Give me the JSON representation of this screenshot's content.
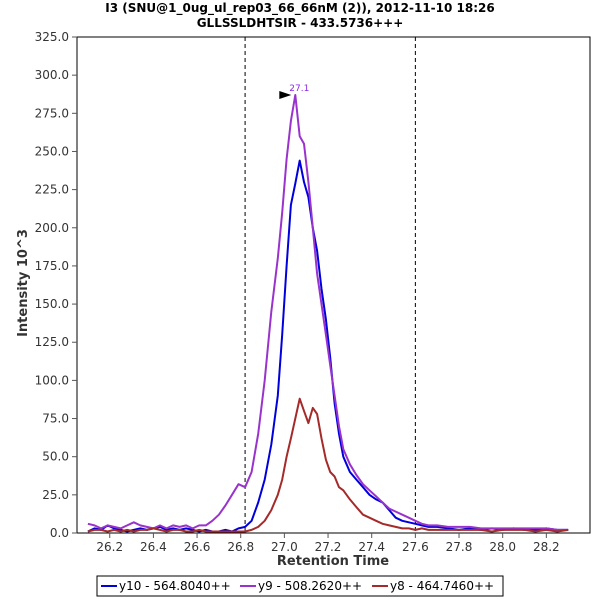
{
  "chart_data": {
    "type": "line",
    "title": "I3 (SNU@1_0ug_ul_rep03_66_66nM (2)), 2012-11-10 18:26",
    "subtitle": "GLLSSLDHTSIR - 433.5736+++",
    "xlabel": "Retention Time",
    "ylabel": "Intensity 10^3",
    "xlim": [
      26.05,
      28.4
    ],
    "ylim": [
      0,
      325
    ],
    "xticks": [
      26.2,
      26.4,
      26.6,
      26.8,
      27.0,
      27.2,
      27.4,
      27.6,
      27.8,
      28.0,
      28.2
    ],
    "yticks": [
      0.0,
      25.0,
      50.0,
      75.0,
      100.0,
      125.0,
      150.0,
      175.0,
      200.0,
      225.0,
      250.0,
      275.0,
      300.0,
      325.0
    ],
    "vlines": [
      26.82,
      27.6
    ],
    "annotation": {
      "text": "27.1",
      "x": 27.05,
      "y": 287
    },
    "legend_position": "bottom",
    "series": [
      {
        "name": "y10 - 564.8040++",
        "color": "#0000dd",
        "x": [
          26.1,
          26.13,
          26.16,
          26.19,
          26.22,
          26.25,
          26.28,
          26.31,
          26.34,
          26.37,
          26.4,
          26.43,
          26.46,
          26.49,
          26.52,
          26.55,
          26.58,
          26.61,
          26.64,
          26.67,
          26.7,
          26.73,
          26.76,
          26.79,
          26.82,
          26.85,
          26.88,
          26.91,
          26.94,
          26.97,
          26.99,
          27.01,
          27.03,
          27.05,
          27.07,
          27.09,
          27.11,
          27.13,
          27.15,
          27.17,
          27.19,
          27.21,
          27.23,
          27.25,
          27.27,
          27.3,
          27.33,
          27.36,
          27.39,
          27.42,
          27.45,
          27.48,
          27.51,
          27.54,
          27.57,
          27.6,
          27.63,
          27.66,
          27.7,
          27.75,
          27.8,
          27.85,
          27.9,
          27.95,
          28.0,
          28.05,
          28.1,
          28.15,
          28.2,
          28.25,
          28.3
        ],
        "values": [
          1,
          3,
          2,
          5,
          3,
          2,
          1,
          2,
          3,
          2,
          3,
          4,
          2,
          3,
          2,
          3,
          2,
          1,
          2,
          1,
          1,
          2,
          1,
          3,
          4,
          8,
          20,
          35,
          58,
          90,
          130,
          175,
          215,
          229,
          244,
          230,
          220,
          200,
          185,
          160,
          140,
          115,
          85,
          65,
          50,
          40,
          35,
          30,
          25,
          22,
          20,
          15,
          10,
          8,
          7,
          6,
          5,
          4,
          4,
          3,
          2,
          3,
          2,
          3,
          2,
          3,
          2,
          2,
          3,
          2,
          2
        ]
      },
      {
        "name": "y9 - 508.2620++",
        "color": "#9933cc",
        "x": [
          26.1,
          26.13,
          26.16,
          26.19,
          26.22,
          26.25,
          26.28,
          26.31,
          26.34,
          26.37,
          26.4,
          26.43,
          26.46,
          26.49,
          26.52,
          26.55,
          26.58,
          26.61,
          26.64,
          26.67,
          26.7,
          26.73,
          26.76,
          26.79,
          26.82,
          26.85,
          26.88,
          26.91,
          26.94,
          26.97,
          26.99,
          27.01,
          27.03,
          27.05,
          27.07,
          27.09,
          27.11,
          27.13,
          27.15,
          27.17,
          27.19,
          27.21,
          27.23,
          27.25,
          27.27,
          27.3,
          27.33,
          27.36,
          27.39,
          27.42,
          27.45,
          27.48,
          27.51,
          27.54,
          27.57,
          27.6,
          27.63,
          27.66,
          27.7,
          27.75,
          27.8,
          27.85,
          27.9,
          27.95,
          28.0,
          28.05,
          28.1,
          28.15,
          28.2,
          28.25,
          28.3
        ],
        "values": [
          6,
          5,
          3,
          5,
          4,
          3,
          5,
          7,
          5,
          4,
          3,
          5,
          3,
          5,
          4,
          5,
          3,
          5,
          5,
          8,
          12,
          18,
          25,
          32,
          30,
          40,
          65,
          100,
          145,
          180,
          210,
          245,
          270,
          287,
          260,
          255,
          230,
          200,
          170,
          150,
          130,
          110,
          90,
          70,
          55,
          45,
          38,
          32,
          28,
          24,
          20,
          16,
          14,
          12,
          10,
          8,
          6,
          5,
          5,
          4,
          4,
          4,
          3,
          3,
          3,
          3,
          3,
          3,
          3,
          2,
          2
        ]
      },
      {
        "name": "y8 - 464.7460++",
        "color": "#a52a2a",
        "x": [
          26.1,
          26.13,
          26.16,
          26.19,
          26.22,
          26.25,
          26.28,
          26.31,
          26.34,
          26.37,
          26.4,
          26.43,
          26.46,
          26.49,
          26.52,
          26.55,
          26.58,
          26.61,
          26.64,
          26.67,
          26.7,
          26.73,
          26.76,
          26.79,
          26.82,
          26.85,
          26.88,
          26.91,
          26.94,
          26.97,
          26.99,
          27.01,
          27.03,
          27.05,
          27.07,
          27.09,
          27.11,
          27.13,
          27.15,
          27.17,
          27.19,
          27.21,
          27.23,
          27.25,
          27.27,
          27.3,
          27.33,
          27.36,
          27.39,
          27.42,
          27.45,
          27.48,
          27.51,
          27.54,
          27.57,
          27.6,
          27.63,
          27.66,
          27.7,
          27.75,
          27.8,
          27.85,
          27.9,
          27.95,
          28.0,
          28.05,
          28.1,
          28.15,
          28.2,
          28.25,
          28.3
        ],
        "values": [
          1,
          2,
          2,
          1,
          2,
          1,
          2,
          1,
          2,
          2,
          3,
          2,
          1,
          2,
          2,
          1,
          1,
          2,
          1,
          1,
          1,
          1,
          1,
          1,
          1,
          2,
          4,
          8,
          15,
          25,
          35,
          50,
          62,
          75,
          88,
          80,
          72,
          82,
          78,
          62,
          48,
          40,
          37,
          30,
          28,
          22,
          17,
          12,
          10,
          8,
          6,
          5,
          4,
          3,
          3,
          2,
          3,
          2,
          2,
          2,
          2,
          2,
          2,
          1,
          2,
          2,
          2,
          1,
          2,
          1,
          2
        ]
      }
    ]
  }
}
